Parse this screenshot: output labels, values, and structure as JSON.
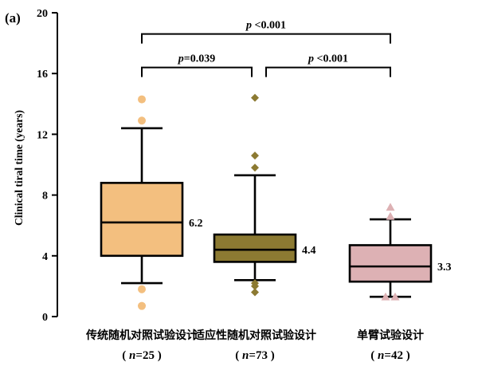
{
  "panel_label": "(a)",
  "chart_data": {
    "type": "box",
    "ylabel": "Clinical tiral time (years)",
    "ylim": [
      0,
      20
    ],
    "yticks": [
      0,
      4,
      8,
      12,
      16,
      20
    ],
    "groups": [
      {
        "label": "传统随机对照试验设计",
        "n_label": "( n=25 )",
        "color": "#f3bf7f",
        "q1": 4.0,
        "median": 6.2,
        "q3": 8.8,
        "whisker_low": 2.2,
        "whisker_high": 12.4,
        "median_label": "6.2",
        "outliers": [
          14.3,
          12.9,
          1.8,
          0.7
        ],
        "marker": "circle"
      },
      {
        "label": "适应性随机对照试验设计",
        "n_label": "( n=73 )",
        "color": "#8c7a32",
        "q1": 3.6,
        "median": 4.4,
        "q3": 5.4,
        "whisker_low": 2.4,
        "whisker_high": 9.3,
        "median_label": "4.4",
        "outliers": [
          14.4,
          10.6,
          9.8,
          2.2,
          2.0,
          1.6
        ],
        "marker": "diamond"
      },
      {
        "label": "单臂试验设计",
        "n_label": "( n=42 )",
        "color": "#ddb1b4",
        "q1": 2.3,
        "median": 3.3,
        "q3": 4.7,
        "whisker_low": 1.3,
        "whisker_high": 6.4,
        "median_label": "3.3",
        "outliers": [
          7.2,
          6.6,
          1.3,
          1.3
        ],
        "marker": "triangle"
      }
    ],
    "comparisons": [
      {
        "from": 0,
        "to": 2,
        "label": "p <0.001",
        "y": 18.6
      },
      {
        "from": 0,
        "to": 1,
        "label": "p=0.039",
        "y": 16.4
      },
      {
        "from": 1,
        "to": 2,
        "label": "p <0.001",
        "y": 16.4
      }
    ]
  }
}
